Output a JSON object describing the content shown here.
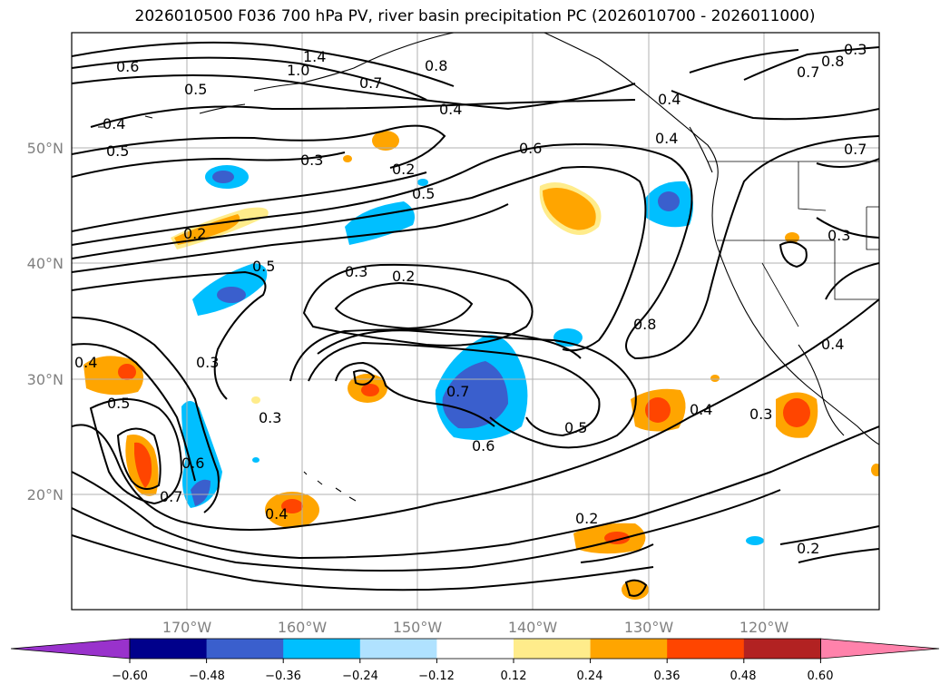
{
  "title": "2026010500 F036 700 hPa PV, river basin precipitation PC (2026010700 - 2026011000)",
  "map": {
    "lon_labels": [
      "170°W",
      "160°W",
      "150°W",
      "140°W",
      "130°W",
      "120°W"
    ],
    "lat_labels": [
      "50°N",
      "40°N",
      "30°N",
      "20°N"
    ],
    "grid_color": "#b0b0b0"
  },
  "contour_labels": [
    {
      "text": "0.6"
    },
    {
      "text": "1.0"
    },
    {
      "text": "1.4"
    },
    {
      "text": "0.8"
    },
    {
      "text": "0.5"
    },
    {
      "text": "0.7"
    },
    {
      "text": "0.4"
    },
    {
      "text": "0.5"
    },
    {
      "text": "0.4"
    },
    {
      "text": "0.3"
    },
    {
      "text": "0.2"
    },
    {
      "text": "0.5"
    },
    {
      "text": "0.6"
    },
    {
      "text": "0.4"
    },
    {
      "text": "0.4"
    },
    {
      "text": "0.8"
    },
    {
      "text": "0.7"
    },
    {
      "text": "0.7"
    },
    {
      "text": "0.2"
    },
    {
      "text": "0.5"
    },
    {
      "text": "0.3"
    },
    {
      "text": "0.2"
    },
    {
      "text": "0.3"
    },
    {
      "text": "0.3"
    },
    {
      "text": "0.8"
    },
    {
      "text": "0.4"
    },
    {
      "text": "0.3"
    },
    {
      "text": "0.7"
    },
    {
      "text": "0.5"
    },
    {
      "text": "0.6"
    },
    {
      "text": "0.4"
    },
    {
      "text": "0.3"
    },
    {
      "text": "0.4"
    },
    {
      "text": "0.5"
    },
    {
      "text": "0.6"
    },
    {
      "text": "0.7"
    },
    {
      "text": "0.4"
    },
    {
      "text": "0.2"
    },
    {
      "text": "0.2"
    },
    {
      "text": "0.3"
    }
  ],
  "colorbar": {
    "ticks": [
      "−0.60",
      "−0.48",
      "−0.36",
      "−0.24",
      "−0.12",
      "0.12",
      "0.24",
      "0.36",
      "0.48",
      "0.60"
    ],
    "colors": [
      "#9932cc",
      "#00008b",
      "#3a5fcd",
      "#00bfff",
      "#b0e2ff",
      "#ffffff",
      "#ffec8b",
      "#ffa500",
      "#ff4500",
      "#b22222",
      "#ff82ab"
    ]
  }
}
